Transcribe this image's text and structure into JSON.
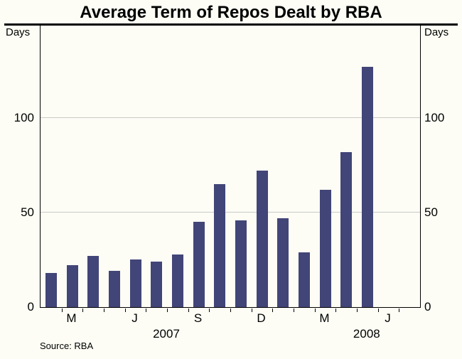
{
  "title": "Average Term of Repos Dealt by RBA",
  "axis": {
    "unit_left": "Days",
    "unit_right": "Days",
    "y_ticks": [
      0,
      50,
      100
    ]
  },
  "source": "Source: RBA",
  "colors": {
    "bar": "#414577",
    "gridline": "#c9c9c9",
    "axis": "#000000",
    "background": "#fdfdf5",
    "text": "#000000"
  },
  "chart_data": {
    "type": "bar",
    "title": "Average Term of Repos Dealt by RBA",
    "xlabel": "",
    "ylabel": "Days",
    "ylim": [
      0,
      140
    ],
    "y_ticks": [
      0,
      50,
      100
    ],
    "grid": "horizontal",
    "legend": "none",
    "months": [
      {
        "month": "Feb 2007",
        "label": "",
        "value": 18
      },
      {
        "month": "Mar 2007",
        "label": "M",
        "value": 22
      },
      {
        "month": "Apr 2007",
        "label": "",
        "value": 27
      },
      {
        "month": "May 2007",
        "label": "",
        "value": 19
      },
      {
        "month": "Jun 2007",
        "label": "J",
        "value": 25
      },
      {
        "month": "Jul 2007",
        "label": "",
        "value": 24
      },
      {
        "month": "Aug 2007",
        "label": "",
        "value": 28
      },
      {
        "month": "Sep 2007",
        "label": "S",
        "value": 45
      },
      {
        "month": "Oct 2007",
        "label": "",
        "value": 65
      },
      {
        "month": "Nov 2007",
        "label": "",
        "value": 46
      },
      {
        "month": "Dec 2007",
        "label": "D",
        "value": 72
      },
      {
        "month": "Jan 2008",
        "label": "",
        "value": 47
      },
      {
        "month": "Feb 2008",
        "label": "",
        "value": 29
      },
      {
        "month": "Mar 2008",
        "label": "M",
        "value": 62
      },
      {
        "month": "Apr 2008",
        "label": "",
        "value": 82
      },
      {
        "month": "May 2008",
        "label": "",
        "value": 127
      },
      {
        "month": "Jun 2008",
        "label": "J",
        "value": null
      },
      {
        "month": "Jul 2008",
        "label": "",
        "value": null
      }
    ],
    "year_labels": [
      {
        "label": "2007",
        "slot": 6.5
      },
      {
        "label": "2008",
        "slot": 16
      }
    ]
  }
}
